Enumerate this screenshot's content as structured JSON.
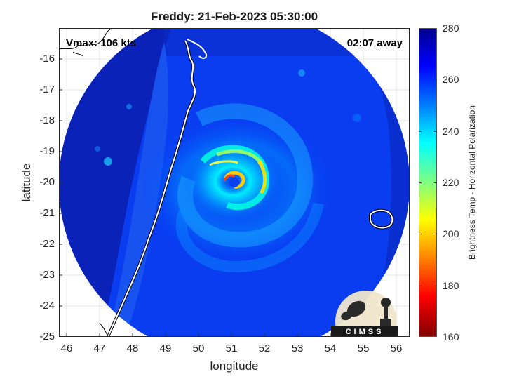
{
  "title": "Freddy: 21-Feb-2023 05:30:00",
  "annotations": {
    "vmax": "Vmax: 106 kts",
    "away": "02:07 away"
  },
  "map": {
    "xlabel": "longitude",
    "ylabel": "latitude",
    "lon_range": [
      45.7,
      56.3
    ],
    "lat_range": [
      -25,
      -15
    ]
  },
  "axes": {
    "x_ticks": [
      "46",
      "47",
      "48",
      "49",
      "50",
      "51",
      "52",
      "53",
      "54",
      "55",
      "56"
    ],
    "y_ticks": [
      "-16",
      "-17",
      "-18",
      "-19",
      "-20",
      "-21",
      "-22",
      "-23",
      "-24",
      "-25"
    ]
  },
  "colorbar": {
    "label": "Brightness Temp - Horizontal Polarization",
    "ticks": [
      "280",
      "260",
      "240",
      "220",
      "200",
      "180",
      "160"
    ],
    "range": [
      160,
      280
    ]
  },
  "logo": {
    "text": "CIMSS",
    "icon": "cimss-logo-icon"
  },
  "features": {
    "storm_center_lon": 51.0,
    "storm_center_lat": -20.0,
    "coast": "madagascar-coastline",
    "island": "reunion-island-outline"
  }
}
